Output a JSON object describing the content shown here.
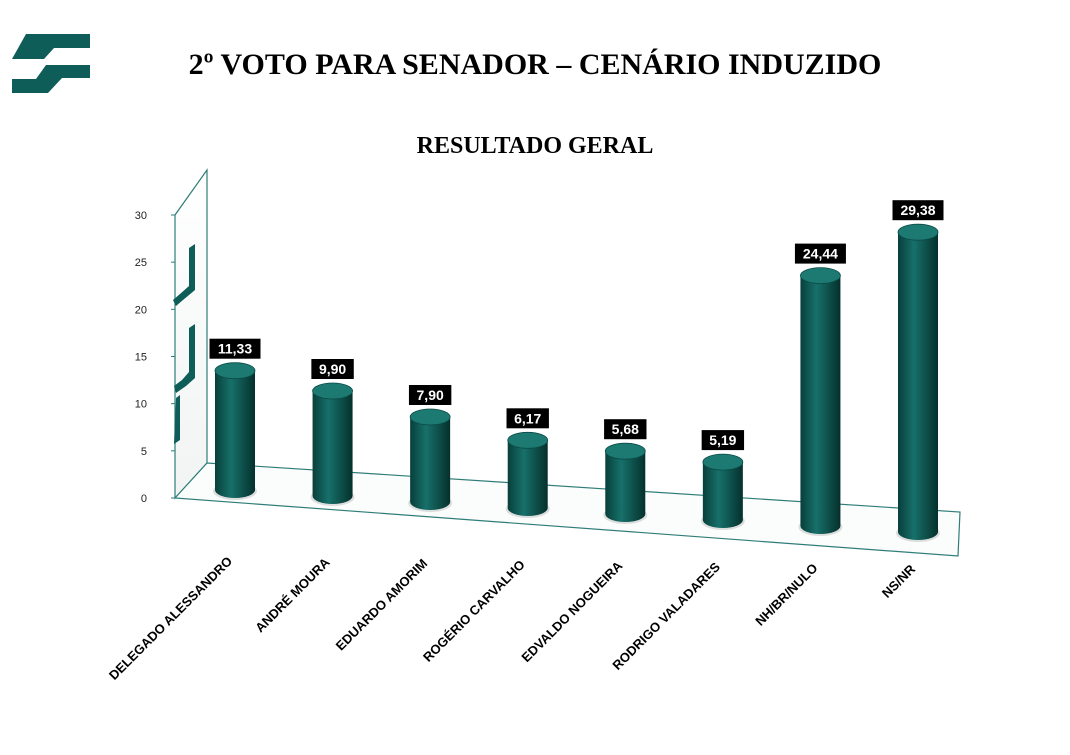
{
  "header": {
    "title": "2º VOTO PARA SENADOR – CENÁRIO INDUZIDO",
    "subtitle": "RESULTADO GERAL"
  },
  "chart_data": {
    "type": "bar",
    "style": "3d-cylinder",
    "title": "RESULTADO GERAL",
    "categories": [
      "DELEGADO ALESSANDRO",
      "ANDRÉ MOURA",
      "EDUARDO AMORIM",
      "ROGÉRIO CARVALHO",
      "EDVALDO NOGUEIRA",
      "RODRIGO VALADARES",
      "NH/BR/NULO",
      "NS/NR"
    ],
    "values": [
      11.33,
      9.9,
      7.9,
      6.17,
      5.68,
      5.19,
      24.44,
      29.38
    ],
    "data_labels": [
      "11,33",
      "9,90",
      "7,90",
      "6,17",
      "5,68",
      "5,19",
      "24,44",
      "29,38"
    ],
    "yticks": [
      0,
      5,
      10,
      15,
      20,
      25,
      30
    ],
    "ylim": [
      0,
      30
    ],
    "xlabel": "",
    "ylabel": "",
    "grid": false,
    "legend": "none",
    "colors": {
      "bar": "#0e5d58",
      "bar_top": "#1d7a73",
      "axis": "#2f7d78",
      "label_bg": "#000000",
      "logo": "#0e5d58"
    }
  }
}
